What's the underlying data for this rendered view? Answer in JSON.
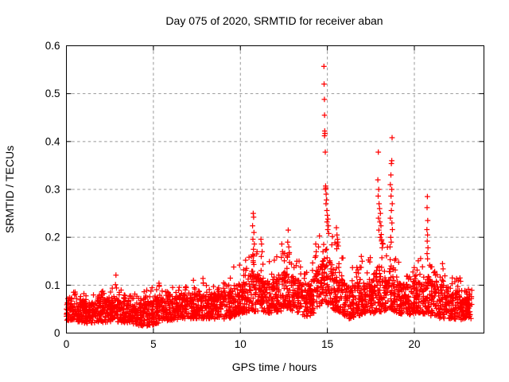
{
  "figure": {
    "background": "#ffffff",
    "marker_color": "#ff0000",
    "grid_color": "#999999",
    "border_color": "#000000",
    "text_color": "#000000"
  },
  "chart_data": {
    "type": "scatter",
    "title": "Day 075 of 2020, SRMTID for receiver aban",
    "xlabel": "GPS time / hours",
    "ylabel": "SRMTID / TECUs",
    "xlim": [
      0,
      24
    ],
    "ylim": [
      0,
      0.6
    ],
    "xticks": [
      0,
      5,
      10,
      15,
      20
    ],
    "xtick_labels": [
      "0",
      "5",
      "10",
      "15",
      "20"
    ],
    "yticks": [
      0,
      0.1,
      0.2,
      0.3,
      0.4,
      0.5,
      0.6
    ],
    "ytick_labels": [
      "0",
      "0.1",
      "0.2",
      "0.3",
      "0.4",
      "0.5",
      "0.6"
    ],
    "grid": true,
    "legend": "none",
    "marker": "+",
    "marker_size_px": 7,
    "x_data_range": [
      0,
      23.3
    ],
    "seed": 75,
    "tail_fraction": 0.12,
    "baseline_bins": [
      [
        0.0,
        0.5,
        60,
        0.025,
        0.068,
        0.085
      ],
      [
        0.5,
        1.0,
        60,
        0.022,
        0.068,
        0.09
      ],
      [
        1.0,
        1.5,
        60,
        0.02,
        0.065,
        0.08
      ],
      [
        1.5,
        2.0,
        60,
        0.022,
        0.068,
        0.085
      ],
      [
        2.0,
        2.5,
        60,
        0.022,
        0.07,
        0.09
      ],
      [
        2.5,
        3.0,
        60,
        0.025,
        0.075,
        0.095
      ],
      [
        3.0,
        3.5,
        60,
        0.022,
        0.07,
        0.09
      ],
      [
        3.5,
        4.0,
        60,
        0.02,
        0.068,
        0.085
      ],
      [
        4.0,
        4.5,
        60,
        0.015,
        0.06,
        0.08
      ],
      [
        4.5,
        5.0,
        60,
        0.015,
        0.065,
        0.095
      ],
      [
        5.0,
        5.5,
        60,
        0.02,
        0.07,
        0.105
      ],
      [
        5.5,
        6.0,
        60,
        0.025,
        0.072,
        0.09
      ],
      [
        6.0,
        6.5,
        60,
        0.028,
        0.078,
        0.1
      ],
      [
        6.5,
        7.0,
        60,
        0.03,
        0.08,
        0.1
      ],
      [
        7.0,
        7.5,
        60,
        0.03,
        0.082,
        0.105
      ],
      [
        7.5,
        8.0,
        60,
        0.03,
        0.085,
        0.11
      ],
      [
        8.0,
        8.5,
        60,
        0.03,
        0.08,
        0.1
      ],
      [
        8.5,
        9.0,
        60,
        0.028,
        0.078,
        0.098
      ],
      [
        9.0,
        9.5,
        60,
        0.03,
        0.085,
        0.11
      ],
      [
        9.5,
        10.0,
        60,
        0.035,
        0.095,
        0.138
      ],
      [
        10.0,
        10.5,
        60,
        0.04,
        0.105,
        0.155
      ],
      [
        10.5,
        11.0,
        60,
        0.045,
        0.13,
        0.185
      ],
      [
        11.0,
        11.5,
        60,
        0.045,
        0.12,
        0.165
      ],
      [
        11.5,
        12.0,
        60,
        0.04,
        0.11,
        0.15
      ],
      [
        12.0,
        12.5,
        60,
        0.045,
        0.12,
        0.165
      ],
      [
        12.5,
        13.0,
        60,
        0.05,
        0.125,
        0.175
      ],
      [
        13.0,
        13.5,
        60,
        0.04,
        0.11,
        0.155
      ],
      [
        13.5,
        14.0,
        60,
        0.032,
        0.1,
        0.14
      ],
      [
        14.0,
        14.5,
        60,
        0.04,
        0.115,
        0.165
      ],
      [
        14.5,
        15.0,
        60,
        0.06,
        0.165,
        0.23
      ],
      [
        15.0,
        15.5,
        60,
        0.05,
        0.14,
        0.21
      ],
      [
        15.5,
        16.0,
        60,
        0.04,
        0.125,
        0.175
      ],
      [
        16.0,
        16.5,
        60,
        0.03,
        0.09,
        0.125
      ],
      [
        16.5,
        17.0,
        60,
        0.035,
        0.105,
        0.155
      ],
      [
        17.0,
        17.5,
        60,
        0.04,
        0.105,
        0.15
      ],
      [
        17.5,
        18.0,
        60,
        0.04,
        0.125,
        0.19
      ],
      [
        18.0,
        18.5,
        60,
        0.045,
        0.135,
        0.195
      ],
      [
        18.5,
        19.0,
        60,
        0.045,
        0.13,
        0.185
      ],
      [
        19.0,
        19.5,
        60,
        0.04,
        0.105,
        0.148
      ],
      [
        19.5,
        20.0,
        60,
        0.038,
        0.1,
        0.14
      ],
      [
        20.0,
        20.5,
        60,
        0.04,
        0.108,
        0.155
      ],
      [
        20.5,
        21.0,
        60,
        0.04,
        0.12,
        0.16
      ],
      [
        21.0,
        21.5,
        60,
        0.03,
        0.095,
        0.125
      ],
      [
        21.5,
        22.0,
        60,
        0.03,
        0.1,
        0.13
      ],
      [
        22.0,
        22.5,
        60,
        0.028,
        0.09,
        0.115
      ],
      [
        22.5,
        23.0,
        60,
        0.028,
        0.088,
        0.112
      ],
      [
        23.0,
        23.3,
        36,
        0.03,
        0.08,
        0.1
      ]
    ],
    "peaks": [
      [
        2.85,
        0.121
      ],
      [
        2.82,
        0.101
      ],
      [
        2.88,
        0.094
      ],
      [
        5.32,
        0.104
      ],
      [
        7.3,
        0.11
      ],
      [
        7.85,
        0.114
      ],
      [
        9.62,
        0.138
      ],
      [
        9.95,
        0.142
      ],
      [
        10.3,
        0.152
      ],
      [
        10.7,
        0.224
      ],
      [
        10.74,
        0.25
      ],
      [
        10.76,
        0.242
      ],
      [
        10.78,
        0.21
      ],
      [
        10.72,
        0.196
      ],
      [
        10.8,
        0.186
      ],
      [
        10.75,
        0.175
      ],
      [
        11.18,
        0.196
      ],
      [
        11.22,
        0.186
      ],
      [
        11.25,
        0.17
      ],
      [
        11.2,
        0.16
      ],
      [
        11.95,
        0.152
      ],
      [
        12.38,
        0.186
      ],
      [
        12.42,
        0.17
      ],
      [
        12.35,
        0.158
      ],
      [
        12.72,
        0.19
      ],
      [
        12.75,
        0.215
      ],
      [
        12.78,
        0.18
      ],
      [
        12.8,
        0.165
      ],
      [
        13.25,
        0.15
      ],
      [
        14.33,
        0.186
      ],
      [
        14.36,
        0.17
      ],
      [
        14.3,
        0.158
      ],
      [
        14.8,
        0.557
      ],
      [
        14.81,
        0.52
      ],
      [
        14.83,
        0.488
      ],
      [
        14.84,
        0.455
      ],
      [
        14.85,
        0.422
      ],
      [
        14.86,
        0.417
      ],
      [
        14.84,
        0.412
      ],
      [
        14.88,
        0.378
      ],
      [
        14.9,
        0.307
      ],
      [
        14.91,
        0.303
      ],
      [
        14.89,
        0.3
      ],
      [
        14.93,
        0.29
      ],
      [
        14.95,
        0.278
      ],
      [
        14.92,
        0.27
      ],
      [
        14.97,
        0.256
      ],
      [
        15.0,
        0.246
      ],
      [
        15.03,
        0.238
      ],
      [
        14.98,
        0.232
      ],
      [
        15.06,
        0.224
      ],
      [
        15.02,
        0.216
      ],
      [
        15.08,
        0.208
      ],
      [
        15.52,
        0.22
      ],
      [
        15.55,
        0.205
      ],
      [
        15.58,
        0.196
      ],
      [
        15.6,
        0.19
      ],
      [
        15.56,
        0.186
      ],
      [
        15.62,
        0.182
      ],
      [
        15.54,
        0.176
      ],
      [
        16.95,
        0.16
      ],
      [
        17.0,
        0.15
      ],
      [
        17.93,
        0.378
      ],
      [
        17.9,
        0.32
      ],
      [
        17.95,
        0.3
      ],
      [
        17.92,
        0.286
      ],
      [
        17.97,
        0.27
      ],
      [
        18.0,
        0.26
      ],
      [
        18.05,
        0.25
      ],
      [
        17.94,
        0.24
      ],
      [
        18.02,
        0.232
      ],
      [
        18.08,
        0.224
      ],
      [
        17.96,
        0.215
      ],
      [
        18.1,
        0.206
      ],
      [
        18.04,
        0.2
      ],
      [
        18.12,
        0.195
      ],
      [
        18.2,
        0.186
      ],
      [
        18.15,
        0.178
      ],
      [
        18.72,
        0.408
      ],
      [
        18.7,
        0.36
      ],
      [
        18.68,
        0.354
      ],
      [
        18.65,
        0.33
      ],
      [
        18.62,
        0.31
      ],
      [
        18.7,
        0.3
      ],
      [
        18.66,
        0.286
      ],
      [
        18.73,
        0.27
      ],
      [
        18.68,
        0.256
      ],
      [
        18.62,
        0.24
      ],
      [
        18.71,
        0.23
      ],
      [
        18.74,
        0.216
      ],
      [
        18.64,
        0.2
      ],
      [
        18.67,
        0.19
      ],
      [
        18.6,
        0.18
      ],
      [
        19.1,
        0.148
      ],
      [
        20.75,
        0.285
      ],
      [
        20.73,
        0.262
      ],
      [
        20.77,
        0.235
      ],
      [
        20.72,
        0.216
      ],
      [
        20.76,
        0.205
      ],
      [
        20.74,
        0.192
      ],
      [
        20.78,
        0.178
      ],
      [
        20.73,
        0.166
      ],
      [
        20.76,
        0.155
      ],
      [
        21.62,
        0.145
      ],
      [
        21.65,
        0.134
      ],
      [
        22.62,
        0.115
      ],
      [
        22.66,
        0.108
      ]
    ]
  }
}
